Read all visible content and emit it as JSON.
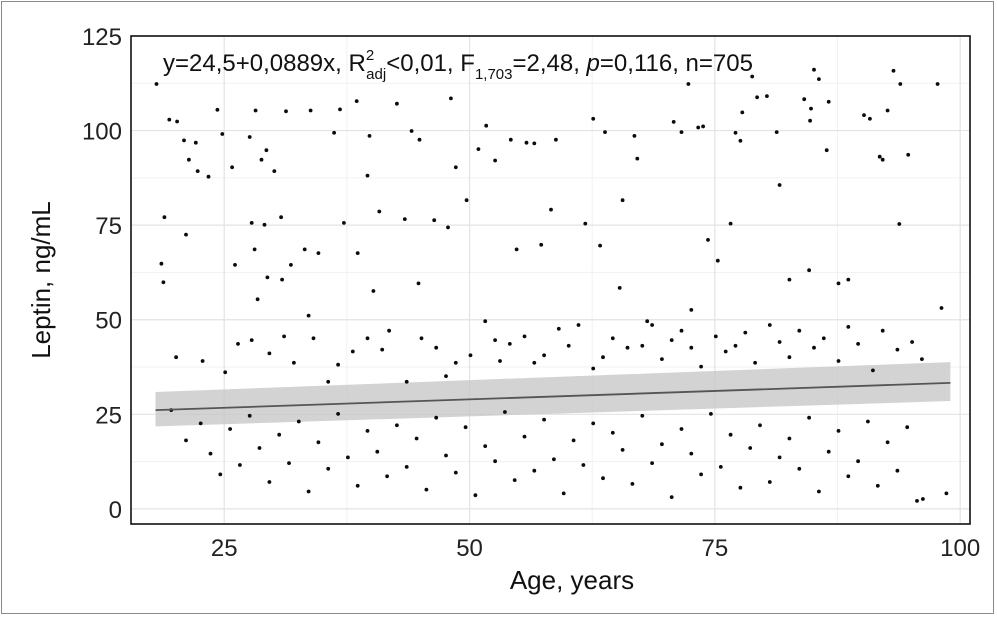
{
  "chart_data": {
    "type": "scatter",
    "xlabel": "Age, years",
    "ylabel": "Leptin, ng/mL",
    "xlim": [
      15.5,
      101
    ],
    "ylim": [
      -4,
      125
    ],
    "x_ticks": [
      25,
      50,
      75,
      100
    ],
    "y_ticks": [
      0,
      25,
      50,
      75,
      100,
      125
    ],
    "x_tick_labels": [
      "25",
      "50",
      "75",
      "100"
    ],
    "y_tick_labels": [
      "0",
      "25",
      "50",
      "75",
      "100",
      "125"
    ],
    "grid": true,
    "annotation": {
      "eq": "y=24,5+0,0889x, R",
      "r_sup": "2",
      "r_sub": "adj",
      "mid": "<0,01, F",
      "f_sub": "1,703",
      "tail": "=2,48, ",
      "p_italic": "p",
      "end": "=0,116, n=705"
    },
    "regression": {
      "intercept": 24.5,
      "slope": 0.0889,
      "x_range": [
        18,
        99
      ],
      "ci_lower": [
        21.8,
        28.5
      ],
      "ci_upper": [
        30.9,
        38.8
      ]
    },
    "point_count": 705,
    "points": [
      [
        18.1,
        112.3
      ],
      [
        18.9,
        77.1
      ],
      [
        18.6,
        64.8
      ],
      [
        18.8,
        59.9
      ],
      [
        19.4,
        102.9
      ],
      [
        20.2,
        102.4
      ],
      [
        20.9,
        97.4
      ],
      [
        21.1,
        72.5
      ],
      [
        22.1,
        96.8
      ],
      [
        21.4,
        92.3
      ],
      [
        22.3,
        89.3
      ],
      [
        23.4,
        87.8
      ],
      [
        24.3,
        105.5
      ],
      [
        24.8,
        99.1
      ],
      [
        25.8,
        90.3
      ],
      [
        27.6,
        98.3
      ],
      [
        28.2,
        105.3
      ],
      [
        29.3,
        94.8
      ],
      [
        28.8,
        92.3
      ],
      [
        30.1,
        89.3
      ],
      [
        31.3,
        105.1
      ],
      [
        30.8,
        77.1
      ],
      [
        29.1,
        75.1
      ],
      [
        27.8,
        75.6
      ],
      [
        28.1,
        68.6
      ],
      [
        29.4,
        61.2
      ],
      [
        28.4,
        55.4
      ],
      [
        26.1,
        64.5
      ],
      [
        30.9,
        60.6
      ],
      [
        31.8,
        64.5
      ],
      [
        33.8,
        105.3
      ],
      [
        33.2,
        68.6
      ],
      [
        34.6,
        67.6
      ],
      [
        36.2,
        99.4
      ],
      [
        36.8,
        105.6
      ],
      [
        37.2,
        75.6
      ],
      [
        38.5,
        107.8
      ],
      [
        39.8,
        98.6
      ],
      [
        39.6,
        88.1
      ],
      [
        38.6,
        67.6
      ],
      [
        40.8,
        78.6
      ],
      [
        40.2,
        57.6
      ],
      [
        42.6,
        107.1
      ],
      [
        44.1,
        99.9
      ],
      [
        44.9,
        97.6
      ],
      [
        43.4,
        76.6
      ],
      [
        44.8,
        59.6
      ],
      [
        46.4,
        76.3
      ],
      [
        48.1,
        108.5
      ],
      [
        48.6,
        90.3
      ],
      [
        47.8,
        74.4
      ],
      [
        49.7,
        81.6
      ],
      [
        51.7,
        101.3
      ],
      [
        50.9,
        95.1
      ],
      [
        52.6,
        92.1
      ],
      [
        54.2,
        97.6
      ],
      [
        54.8,
        68.6
      ],
      [
        55.8,
        96.8
      ],
      [
        56.6,
        96.6
      ],
      [
        58.3,
        79.1
      ],
      [
        58.8,
        97.6
      ],
      [
        57.3,
        69.8
      ],
      [
        61.8,
        75.4
      ],
      [
        62.6,
        103.1
      ],
      [
        63.3,
        69.6
      ],
      [
        63.8,
        99.6
      ],
      [
        65.3,
        58.4
      ],
      [
        65.6,
        81.6
      ],
      [
        66.8,
        98.6
      ],
      [
        67.1,
        92.6
      ],
      [
        68.1,
        49.6
      ],
      [
        70.8,
        102.3
      ],
      [
        71.6,
        99.6
      ],
      [
        72.3,
        112.3
      ],
      [
        73.3,
        100.8
      ],
      [
        73.8,
        101.1
      ],
      [
        72.6,
        52.6
      ],
      [
        74.3,
        71.1
      ],
      [
        75.3,
        65.6
      ],
      [
        76.6,
        75.4
      ],
      [
        77.1,
        99.4
      ],
      [
        77.6,
        97.3
      ],
      [
        77.8,
        104.8
      ],
      [
        78.8,
        114.3
      ],
      [
        79.3,
        108.8
      ],
      [
        80.3,
        109.1
      ],
      [
        81.3,
        99.6
      ],
      [
        81.6,
        85.6
      ],
      [
        82.6,
        60.6
      ],
      [
        84.1,
        108.3
      ],
      [
        84.8,
        105.8
      ],
      [
        84.7,
        102.6
      ],
      [
        84.6,
        63.1
      ],
      [
        85.1,
        116.1
      ],
      [
        85.6,
        113.6
      ],
      [
        86.6,
        107.6
      ],
      [
        86.4,
        94.8
      ],
      [
        87.6,
        59.6
      ],
      [
        88.6,
        60.6
      ],
      [
        90.2,
        104.1
      ],
      [
        90.8,
        103.1
      ],
      [
        91.8,
        93.1
      ],
      [
        92.1,
        92.3
      ],
      [
        92.6,
        105.3
      ],
      [
        93.2,
        115.8
      ],
      [
        93.8,
        75.3
      ],
      [
        93.9,
        112.3
      ],
      [
        94.7,
        93.6
      ],
      [
        97.7,
        112.3
      ],
      [
        98.1,
        53.1
      ],
      [
        20.1,
        40.1
      ],
      [
        22.8,
        39.1
      ],
      [
        25.1,
        36.1
      ],
      [
        26.4,
        43.6
      ],
      [
        27.8,
        44.6
      ],
      [
        29.6,
        41.1
      ],
      [
        31.1,
        45.6
      ],
      [
        32.1,
        38.6
      ],
      [
        33.6,
        51.1
      ],
      [
        34.1,
        45.1
      ],
      [
        35.6,
        33.6
      ],
      [
        36.6,
        38.1
      ],
      [
        38.1,
        41.6
      ],
      [
        39.6,
        45.1
      ],
      [
        41.1,
        42.1
      ],
      [
        41.8,
        47.1
      ],
      [
        43.6,
        33.6
      ],
      [
        45.1,
        45.1
      ],
      [
        46.6,
        42.6
      ],
      [
        47.6,
        35.1
      ],
      [
        48.6,
        38.6
      ],
      [
        50.1,
        40.6
      ],
      [
        51.6,
        49.6
      ],
      [
        52.6,
        44.6
      ],
      [
        53.1,
        39.1
      ],
      [
        54.1,
        43.6
      ],
      [
        55.6,
        45.6
      ],
      [
        56.6,
        38.6
      ],
      [
        57.6,
        40.6
      ],
      [
        59.1,
        47.6
      ],
      [
        60.1,
        43.1
      ],
      [
        61.1,
        48.6
      ],
      [
        62.6,
        37.1
      ],
      [
        63.6,
        40.1
      ],
      [
        64.6,
        45.1
      ],
      [
        66.1,
        42.6
      ],
      [
        67.6,
        43.1
      ],
      [
        68.6,
        48.6
      ],
      [
        69.6,
        39.6
      ],
      [
        70.6,
        44.6
      ],
      [
        71.6,
        47.1
      ],
      [
        72.6,
        42.6
      ],
      [
        73.6,
        37.6
      ],
      [
        75.1,
        45.6
      ],
      [
        76.1,
        41.6
      ],
      [
        77.1,
        43.1
      ],
      [
        78.1,
        46.6
      ],
      [
        79.1,
        38.6
      ],
      [
        80.6,
        48.6
      ],
      [
        81.6,
        44.1
      ],
      [
        82.6,
        40.1
      ],
      [
        83.6,
        47.1
      ],
      [
        85.1,
        42.6
      ],
      [
        86.1,
        45.1
      ],
      [
        87.6,
        39.1
      ],
      [
        88.6,
        48.1
      ],
      [
        89.6,
        43.6
      ],
      [
        91.1,
        36.6
      ],
      [
        92.1,
        47.1
      ],
      [
        93.6,
        42.1
      ],
      [
        95.1,
        44.1
      ],
      [
        96.1,
        39.6
      ],
      [
        19.6,
        26.1
      ],
      [
        21.1,
        18.1
      ],
      [
        22.6,
        22.6
      ],
      [
        23.6,
        14.6
      ],
      [
        24.6,
        9.1
      ],
      [
        25.6,
        21.1
      ],
      [
        26.6,
        11.6
      ],
      [
        27.6,
        24.6
      ],
      [
        28.6,
        16.1
      ],
      [
        29.6,
        7.1
      ],
      [
        30.6,
        19.6
      ],
      [
        31.6,
        12.1
      ],
      [
        32.6,
        23.1
      ],
      [
        33.6,
        4.6
      ],
      [
        34.6,
        17.6
      ],
      [
        35.6,
        10.6
      ],
      [
        36.6,
        25.1
      ],
      [
        37.6,
        13.6
      ],
      [
        38.6,
        6.1
      ],
      [
        39.6,
        20.6
      ],
      [
        40.6,
        15.1
      ],
      [
        41.6,
        8.6
      ],
      [
        42.6,
        22.1
      ],
      [
        43.6,
        11.1
      ],
      [
        44.6,
        18.6
      ],
      [
        45.6,
        5.1
      ],
      [
        46.6,
        24.1
      ],
      [
        47.6,
        14.1
      ],
      [
        48.6,
        9.6
      ],
      [
        49.6,
        21.6
      ],
      [
        50.6,
        3.6
      ],
      [
        51.6,
        16.6
      ],
      [
        52.6,
        12.6
      ],
      [
        53.6,
        25.6
      ],
      [
        54.6,
        7.6
      ],
      [
        55.6,
        19.1
      ],
      [
        56.6,
        10.1
      ],
      [
        57.6,
        23.6
      ],
      [
        58.6,
        13.1
      ],
      [
        59.6,
        4.1
      ],
      [
        60.6,
        18.1
      ],
      [
        61.6,
        11.6
      ],
      [
        62.6,
        22.6
      ],
      [
        63.6,
        8.1
      ],
      [
        64.6,
        20.1
      ],
      [
        65.6,
        15.6
      ],
      [
        66.6,
        6.6
      ],
      [
        67.6,
        24.6
      ],
      [
        68.6,
        12.1
      ],
      [
        69.6,
        17.1
      ],
      [
        70.6,
        3.1
      ],
      [
        71.6,
        21.1
      ],
      [
        72.6,
        14.6
      ],
      [
        73.6,
        9.1
      ],
      [
        74.6,
        25.1
      ],
      [
        75.6,
        11.1
      ],
      [
        76.6,
        19.6
      ],
      [
        77.6,
        5.6
      ],
      [
        78.6,
        16.1
      ],
      [
        79.6,
        22.1
      ],
      [
        80.6,
        7.1
      ],
      [
        81.6,
        13.6
      ],
      [
        82.6,
        18.6
      ],
      [
        83.6,
        10.6
      ],
      [
        84.6,
        24.1
      ],
      [
        85.6,
        4.6
      ],
      [
        86.6,
        15.1
      ],
      [
        87.6,
        20.6
      ],
      [
        88.6,
        8.6
      ],
      [
        89.6,
        12.6
      ],
      [
        90.6,
        23.1
      ],
      [
        91.6,
        6.1
      ],
      [
        92.6,
        17.6
      ],
      [
        93.6,
        10.1
      ],
      [
        94.6,
        21.6
      ],
      [
        95.6,
        2.1
      ],
      [
        98.6,
        4.1
      ],
      [
        96.2,
        2.6
      ]
    ]
  }
}
